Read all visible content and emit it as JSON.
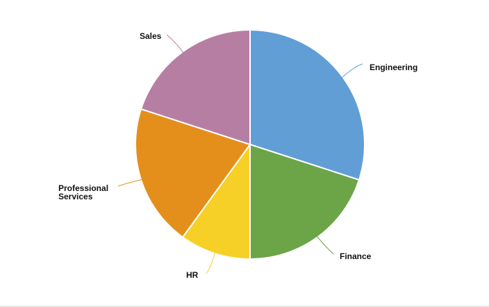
{
  "chart_data": {
    "type": "pie",
    "title": "",
    "slices": [
      {
        "label": [
          "Engineering"
        ],
        "value": 30,
        "color": "#619ed6"
      },
      {
        "label": [
          "Finance"
        ],
        "value": 20,
        "color": "#6ba547"
      },
      {
        "label": [
          "HR"
        ],
        "value": 10,
        "color": "#f7d027"
      },
      {
        "label": [
          "Professional",
          "Services"
        ],
        "value": 20,
        "color": "#e48f1b"
      },
      {
        "label": [
          "Sales"
        ],
        "value": 20,
        "color": "#b77ea3"
      }
    ],
    "start_angle": "12 o'clock",
    "direction": "clockwise",
    "slice_border_color": "#ffffff",
    "legend": "none"
  }
}
